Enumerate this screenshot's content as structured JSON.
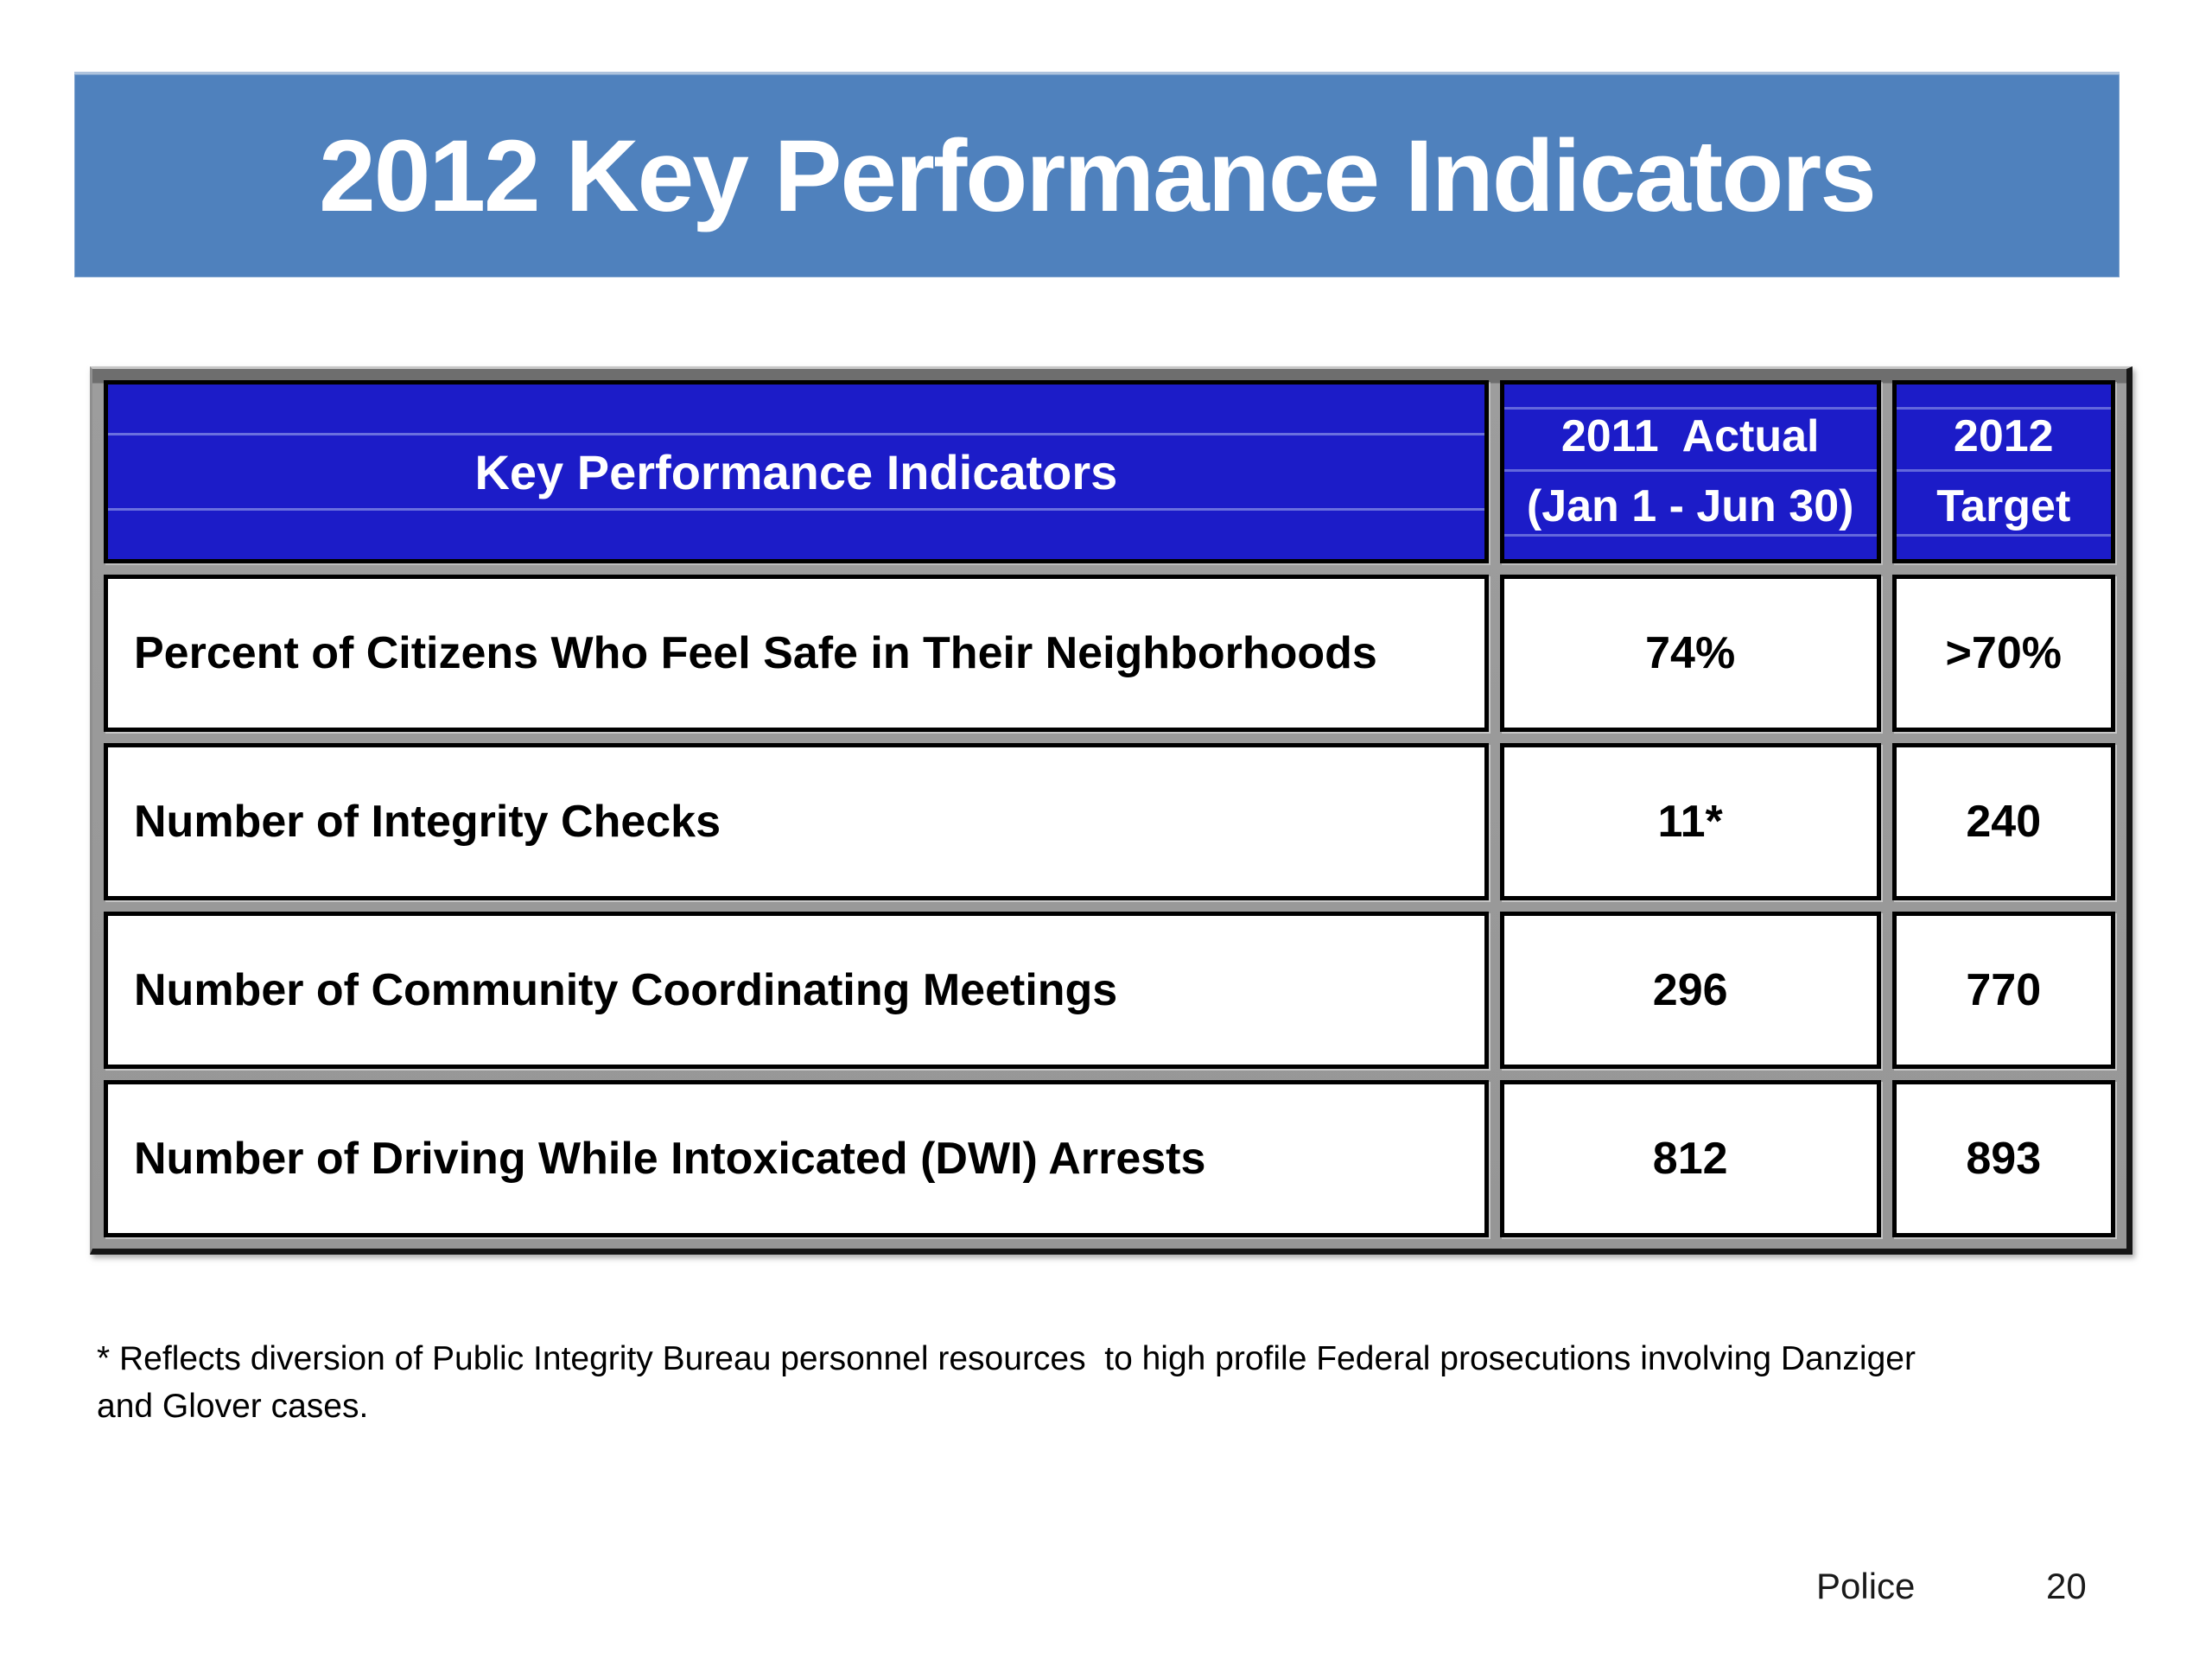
{
  "slide": {
    "title": "2012 Key Performance Indicators",
    "footnote": "* Reflects diversion of Public Integrity Bureau personnel resources  to high profile Federal prosecutions involving Danziger\nand Glover cases.",
    "footer": {
      "section": "Police",
      "page_number": "20"
    }
  },
  "table": {
    "columns": [
      {
        "label": "Key Performance Indicators"
      },
      {
        "line1": "2011  Actual",
        "line2": "(Jan 1 - Jun 30)"
      },
      {
        "line1": "2012",
        "line2": "Target"
      }
    ],
    "rows": [
      {
        "indicator": "Percent of Citizens Who Feel Safe in Their Neighborhoods",
        "actual_2011": "74%",
        "target_2012": ">70%"
      },
      {
        "indicator": "Number of Integrity Checks",
        "actual_2011": "11*",
        "target_2012": "240"
      },
      {
        "indicator": "Number of Community Coordinating Meetings",
        "actual_2011": "296",
        "target_2012": "770"
      },
      {
        "indicator": "Number of Driving While Intoxicated (DWI) Arrests",
        "actual_2011": "812",
        "target_2012": "893"
      }
    ]
  },
  "colors": {
    "banner_blue": "#4F81BD",
    "header_blue": "#1C1CC8",
    "cell_border_black": "#000000",
    "table_channel_gray": "#9A9A9A",
    "title_text": "#FFFFFF",
    "body_text": "#000000"
  }
}
